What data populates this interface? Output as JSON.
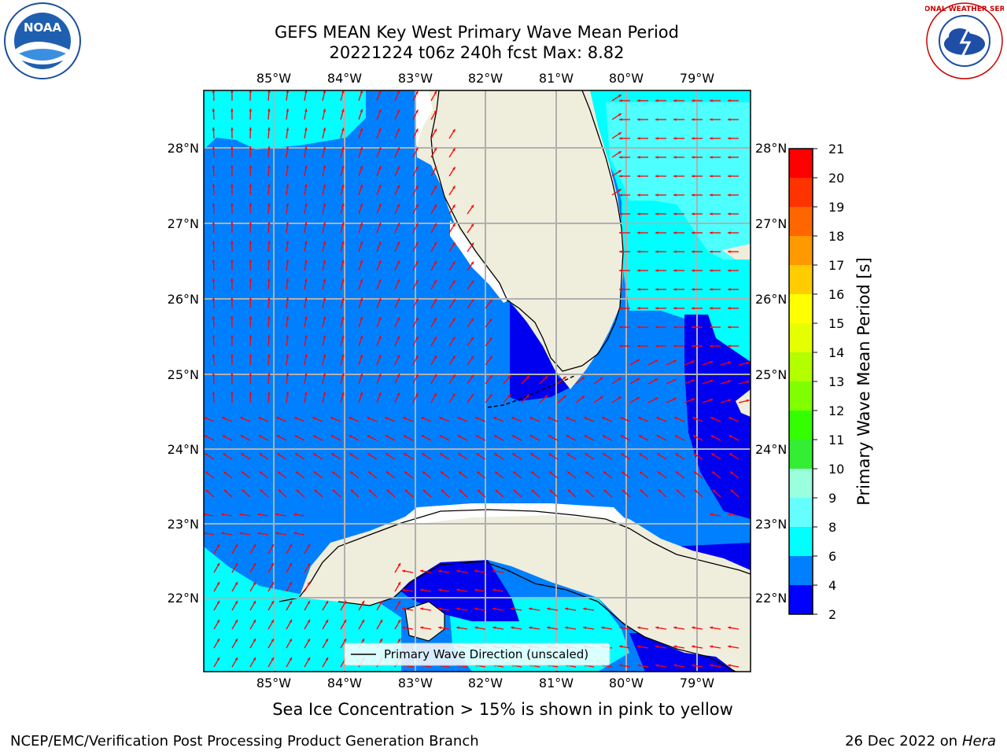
{
  "title_line1": "GEFS MEAN Key West Primary Wave Mean Period",
  "title_line2": "20221224 t06z 240h fcst   Max: 8.82",
  "caption": "Sea Ice Concentration > 15% is shown in pink to yellow",
  "footer_left": "NCEP/EMC/Verification Post Processing Product Generation Branch",
  "footer_date": "26 Dec 2022 on",
  "footer_machine": "Hera",
  "logos": {
    "noara": "NOAA",
    "nws_ring": "NATIONAL WEATHER SERVICE"
  },
  "map": {
    "lon_labels": [
      "85°W",
      "84°W",
      "83°W",
      "82°W",
      "81°W",
      "80°W",
      "79°W"
    ],
    "lat_labels": [
      "28°N",
      "27°N",
      "26°N",
      "25°N",
      "24°N",
      "23°N",
      "22°N"
    ],
    "legend_label": "Primary Wave Direction (unscaled)",
    "colors": {
      "land": "#efeddc",
      "period_2_4": "#0000f0",
      "period_4_6": "#0080ff",
      "period_6_8": "#00ffff",
      "period_8_9": "#5cffff",
      "arrow": "#ff0000",
      "grid": "#b0b0b0"
    }
  },
  "colorbar": {
    "label": "Primary Wave Mean Period [s]",
    "ticks": [
      "21",
      "20",
      "19",
      "18",
      "17",
      "16",
      "15",
      "14",
      "13",
      "12",
      "11",
      "10",
      "9",
      "8",
      "6",
      "4",
      "2"
    ],
    "colors": [
      "#ff0000",
      "#ff3300",
      "#ff6600",
      "#ff9900",
      "#ffcc00",
      "#ffff00",
      "#e6ff00",
      "#b3ff00",
      "#80ff00",
      "#33ff00",
      "#33ee33",
      "#99ffdd",
      "#66ffff",
      "#00ffff",
      "#0080ff",
      "#0000ff"
    ]
  }
}
